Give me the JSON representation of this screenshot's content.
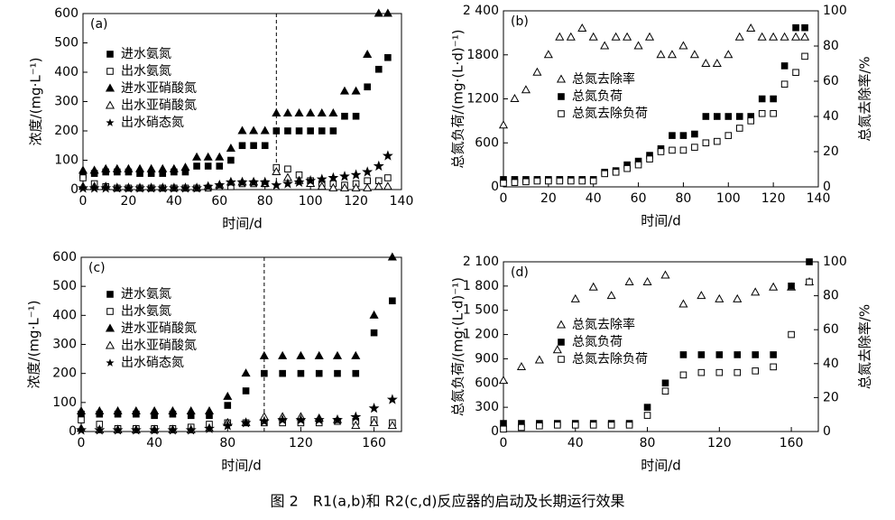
{
  "caption": "图 2　R1(a,b)和 R2(c,d)反应器的启动及长期运行效果",
  "chart_data": [
    {
      "type": "scatter",
      "label": "(a)",
      "xlabel": "时间/d",
      "ylabel": "浓度/(mg·L⁻¹)",
      "xlim": [
        0,
        140
      ],
      "xticks": [
        0,
        20,
        40,
        60,
        80,
        100,
        120,
        140
      ],
      "ylim": [
        0,
        600
      ],
      "yticks": [
        0,
        100,
        200,
        300,
        400,
        500,
        600
      ],
      "vline": 85,
      "x": [
        0,
        5,
        10,
        15,
        20,
        25,
        30,
        35,
        40,
        45,
        50,
        55,
        60,
        65,
        70,
        75,
        80,
        85,
        90,
        95,
        100,
        105,
        110,
        115,
        120,
        125,
        130,
        134
      ],
      "series": [
        {
          "name": "进水氨氮",
          "marker": "square-filled",
          "color": "#000000",
          "values": [
            50,
            55,
            60,
            60,
            60,
            55,
            55,
            55,
            60,
            60,
            80,
            80,
            80,
            100,
            150,
            150,
            150,
            200,
            200,
            200,
            200,
            200,
            200,
            250,
            250,
            350,
            410,
            450
          ]
        },
        {
          "name": "出水氨氮",
          "marker": "square-open",
          "color": "#000000",
          "values": [
            40,
            20,
            10,
            5,
            5,
            5,
            5,
            5,
            5,
            5,
            5,
            5,
            10,
            10,
            20,
            20,
            20,
            75,
            70,
            50,
            30,
            20,
            20,
            15,
            20,
            30,
            30,
            40
          ]
        },
        {
          "name": "进水亚硝酸氮",
          "marker": "triangle-filled",
          "color": "#000000",
          "values": [
            65,
            65,
            70,
            70,
            70,
            70,
            70,
            70,
            70,
            75,
            110,
            110,
            110,
            140,
            200,
            200,
            200,
            260,
            260,
            260,
            260,
            260,
            260,
            335,
            335,
            460,
            600,
            600
          ]
        },
        {
          "name": "出水亚硝酸氮",
          "marker": "triangle-open",
          "color": "#000000",
          "values": [
            10,
            10,
            10,
            5,
            5,
            5,
            5,
            5,
            5,
            5,
            5,
            10,
            15,
            25,
            25,
            25,
            20,
            60,
            40,
            30,
            20,
            10,
            5,
            5,
            5,
            5,
            10,
            10
          ]
        },
        {
          "name": "出水硝态氮",
          "marker": "star",
          "color": "#000000",
          "values": [
            5,
            5,
            5,
            5,
            5,
            5,
            5,
            5,
            5,
            5,
            5,
            10,
            15,
            25,
            25,
            25,
            25,
            15,
            20,
            25,
            30,
            35,
            40,
            45,
            50,
            60,
            80,
            115
          ]
        }
      ]
    },
    {
      "type": "scatter",
      "label": "(b)",
      "xlabel": "时间/d",
      "ylabel": "总氮负荷/(mg·(L·d)⁻¹)",
      "y2label": "总氮去除率/%",
      "xlim": [
        0,
        140
      ],
      "xticks": [
        0,
        20,
        40,
        60,
        80,
        100,
        120,
        140
      ],
      "ylim": [
        0,
        2400
      ],
      "yticks": [
        0,
        600,
        1200,
        1800,
        {
          "value": 2400,
          "label": "2 400"
        }
      ],
      "y2lim": [
        0,
        100
      ],
      "y2ticks": [
        0,
        20,
        40,
        60,
        80,
        100
      ],
      "x": [
        0,
        5,
        10,
        15,
        20,
        25,
        30,
        35,
        40,
        45,
        50,
        55,
        60,
        65,
        70,
        75,
        80,
        85,
        90,
        95,
        100,
        105,
        110,
        115,
        120,
        125,
        130,
        134
      ],
      "series": [
        {
          "name": "总氮去除率",
          "marker": "triangle-open",
          "color": "#000000",
          "axis": "y2",
          "values": [
            35,
            50,
            55,
            65,
            75,
            85,
            85,
            90,
            85,
            80,
            85,
            85,
            80,
            85,
            75,
            75,
            80,
            75,
            70,
            70,
            75,
            85,
            90,
            85,
            85,
            85,
            85,
            85
          ]
        },
        {
          "name": "总氮负荷",
          "marker": "square-filled",
          "color": "#000000",
          "values": [
            100,
            100,
            100,
            100,
            100,
            100,
            100,
            100,
            100,
            200,
            220,
            300,
            350,
            430,
            520,
            700,
            700,
            720,
            960,
            960,
            960,
            960,
            960,
            1200,
            1200,
            1650,
            2170,
            2170
          ]
        },
        {
          "name": "总氮去除负荷",
          "marker": "square-open",
          "color": "#000000",
          "values": [
            50,
            60,
            70,
            80,
            80,
            80,
            80,
            80,
            80,
            180,
            200,
            250,
            300,
            380,
            480,
            500,
            500,
            540,
            600,
            620,
            700,
            800,
            900,
            1000,
            1000,
            1400,
            1560,
            1780
          ]
        }
      ]
    },
    {
      "type": "scatter",
      "label": "(c)",
      "xlabel": "时间/d",
      "ylabel": "浓度/(mg·L⁻¹)",
      "xlim": [
        0,
        175
      ],
      "xticks": [
        0,
        40,
        80,
        120,
        160
      ],
      "ylim": [
        0,
        600
      ],
      "yticks": [
        0,
        100,
        200,
        300,
        400,
        500,
        600
      ],
      "vline": 100,
      "x": [
        0,
        10,
        20,
        30,
        40,
        50,
        60,
        70,
        80,
        90,
        100,
        110,
        120,
        130,
        140,
        150,
        160,
        170
      ],
      "series": [
        {
          "name": "进水氨氮",
          "marker": "square-filled",
          "color": "#000000",
          "values": [
            60,
            60,
            60,
            60,
            55,
            60,
            55,
            55,
            90,
            140,
            200,
            200,
            200,
            200,
            200,
            200,
            340,
            450
          ]
        },
        {
          "name": "出水氨氮",
          "marker": "square-open",
          "color": "#000000",
          "values": [
            40,
            25,
            10,
            10,
            10,
            10,
            15,
            25,
            30,
            30,
            30,
            30,
            30,
            30,
            35,
            35,
            40,
            30
          ]
        },
        {
          "name": "进水亚硝酸氮",
          "marker": "triangle-filled",
          "color": "#000000",
          "values": [
            70,
            70,
            70,
            70,
            70,
            70,
            70,
            70,
            120,
            200,
            260,
            260,
            260,
            260,
            260,
            260,
            400,
            600
          ]
        },
        {
          "name": "出水亚硝酸氮",
          "marker": "triangle-open",
          "color": "#000000",
          "values": [
            10,
            5,
            5,
            5,
            5,
            5,
            5,
            10,
            30,
            30,
            50,
            50,
            50,
            45,
            40,
            20,
            30,
            20
          ]
        },
        {
          "name": "出水硝态氮",
          "marker": "star",
          "color": "#000000",
          "values": [
            5,
            5,
            5,
            5,
            5,
            5,
            5,
            10,
            20,
            30,
            35,
            40,
            40,
            40,
            40,
            50,
            80,
            110
          ]
        }
      ]
    },
    {
      "type": "scatter",
      "label": "(d)",
      "xlabel": "时间/d",
      "ylabel": "总氮负荷/(mg·(L·d)⁻¹)",
      "y2label": "总氮去除率/%",
      "xlim": [
        0,
        175
      ],
      "xticks": [
        0,
        40,
        80,
        120,
        160
      ],
      "ylim": [
        0,
        2100
      ],
      "yticks": [
        0,
        300,
        600,
        900,
        {
          "value": 1200,
          "label": "1 200"
        },
        {
          "value": 1500,
          "label": "1 500"
        },
        {
          "value": 1800,
          "label": "1 800"
        },
        {
          "value": 2100,
          "label": "2 100"
        }
      ],
      "y2lim": [
        0,
        100
      ],
      "y2ticks": [
        0,
        20,
        40,
        60,
        80,
        100
      ],
      "x": [
        0,
        10,
        20,
        30,
        40,
        50,
        60,
        70,
        80,
        90,
        100,
        110,
        120,
        130,
        140,
        150,
        160,
        170
      ],
      "series": [
        {
          "name": "总氮去除率",
          "marker": "triangle-open",
          "color": "#000000",
          "axis": "y2",
          "values": [
            30,
            38,
            42,
            48,
            78,
            85,
            80,
            88,
            88,
            92,
            75,
            80,
            78,
            78,
            82,
            85,
            85,
            88
          ]
        },
        {
          "name": "总氮负荷",
          "marker": "square-filled",
          "color": "#000000",
          "values": [
            100,
            100,
            100,
            100,
            100,
            100,
            100,
            100,
            300,
            600,
            950,
            950,
            950,
            950,
            950,
            950,
            1800,
            2100
          ]
        },
        {
          "name": "总氮去除负荷",
          "marker": "square-open",
          "color": "#000000",
          "values": [
            30,
            50,
            70,
            80,
            80,
            80,
            80,
            80,
            200,
            500,
            700,
            730,
            730,
            730,
            750,
            800,
            1200,
            1850
          ]
        }
      ]
    }
  ]
}
